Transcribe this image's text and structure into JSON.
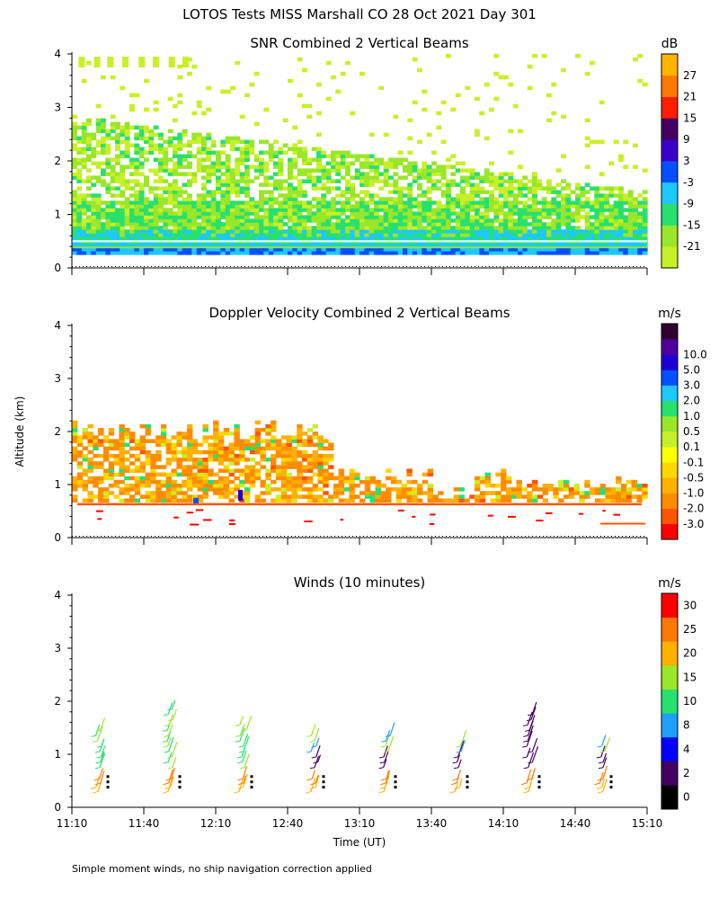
{
  "title": "LOTOS Tests MISS Marshall CO  28 Oct 2021 Day 301",
  "y_axis_label": "Altitude (km)",
  "x_axis_label": "Time (UT)",
  "footnote": "Simple moment winds, no ship navigation correction applied",
  "colors": {
    "snr": [
      "#c8f028",
      "#9ae628",
      "#28e06e",
      "#1ec8ff",
      "#0050ff",
      "#3c00c8",
      "#440060",
      "#ff1e00",
      "#ff7800",
      "#ffb400"
    ],
    "doppler": [
      "#ff0000",
      "#ff5500",
      "#ff8c00",
      "#ffb000",
      "#ffd700",
      "#ffff00",
      "#c8f028",
      "#9ae628",
      "#28e06e",
      "#1ec8ff",
      "#0050ff",
      "#1e00d2",
      "#50009a",
      "#300030"
    ],
    "winds": [
      "#000000",
      "#440060",
      "#0000ff",
      "#1ea0ff",
      "#28e06e",
      "#9ae628",
      "#ffb000",
      "#ff7800",
      "#ff0000"
    ]
  },
  "chart_data": [
    {
      "type": "heatmap",
      "title": "SNR Combined 2 Vertical Beams",
      "units": "dB",
      "ylim": [
        0,
        4
      ],
      "yticks": [
        "0",
        "1",
        "2",
        "3",
        "4"
      ],
      "xlim": [
        "11:10",
        "15:10"
      ],
      "colorbar_labels": [
        "-21",
        "-15",
        "-9",
        "-3",
        "3",
        "9",
        "15",
        "21",
        "27"
      ]
    },
    {
      "type": "heatmap",
      "title": "Doppler Velocity Combined 2 Vertical Beams",
      "units": "m/s",
      "ylim": [
        0,
        4
      ],
      "yticks": [
        "0",
        "1",
        "2",
        "3",
        "4"
      ],
      "xlim": [
        "11:10",
        "15:10"
      ],
      "colorbar_labels": [
        "-3.0",
        "-2.0",
        "-1.0",
        "-0.5",
        "-0.1",
        "0.1",
        "0.5",
        "1.0",
        "2.0",
        "3.0",
        "5.0",
        "10.0"
      ]
    },
    {
      "type": "scatter",
      "title": "Winds (10 minutes)",
      "units": "m/s",
      "ylim": [
        0,
        4
      ],
      "yticks": [
        "0",
        "1",
        "2",
        "3",
        "4"
      ],
      "xticks": [
        "11:10",
        "11:40",
        "12:10",
        "12:40",
        "13:10",
        "13:40",
        "14:10",
        "14:40",
        "15:10"
      ],
      "xlim": [
        "11:10",
        "15:10"
      ],
      "colorbar_labels": [
        "0",
        "2",
        "4",
        "8",
        "10",
        "15",
        "20",
        "25",
        "30"
      ],
      "profile_times": [
        "11:25",
        "11:55",
        "12:25",
        "12:55",
        "13:25",
        "13:55",
        "14:25",
        "14:55"
      ]
    }
  ]
}
